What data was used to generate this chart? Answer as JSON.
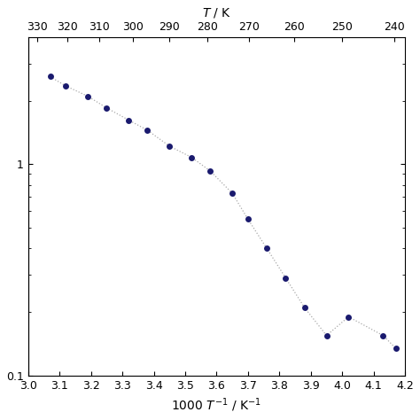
{
  "x_1000T": [
    3.07,
    3.12,
    3.19,
    3.25,
    3.32,
    3.38,
    3.45,
    3.52,
    3.58,
    3.65,
    3.7,
    3.76,
    3.82,
    3.88,
    3.95,
    4.02,
    4.13,
    4.17
  ],
  "y_conductivity": [
    2.6,
    2.35,
    2.1,
    1.85,
    1.62,
    1.45,
    1.22,
    1.08,
    0.93,
    0.73,
    0.55,
    0.4,
    0.29,
    0.21,
    0.155,
    0.19,
    0.155,
    0.135
  ],
  "xlim": [
    3.0,
    4.2
  ],
  "ylim": [
    0.1,
    4.0
  ],
  "xlabel": "1000 T⁻¹ / K⁻¹",
  "top_xlabel": "T / K",
  "top_ticks": [
    330,
    320,
    310,
    300,
    290,
    280,
    270,
    260,
    250,
    240
  ],
  "dot_color": "#1a1a6e",
  "line_color": "#aaaaaa",
  "background_color": "#ffffff",
  "axis_fontsize": 10,
  "tick_fontsize": 9
}
